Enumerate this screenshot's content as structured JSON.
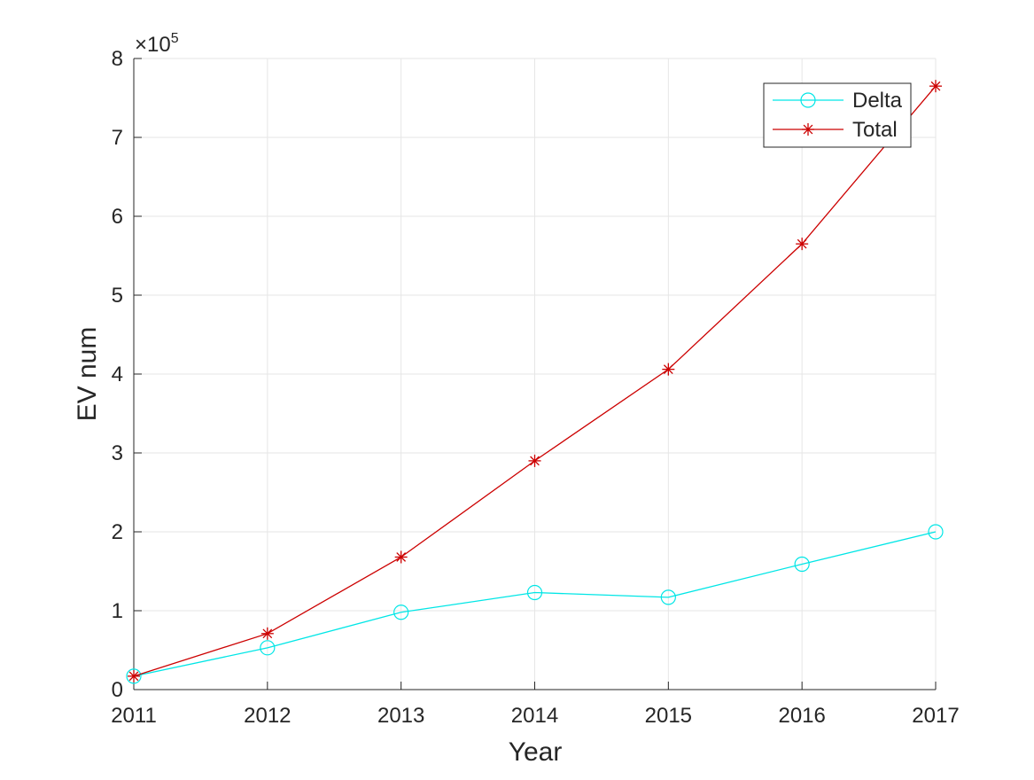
{
  "chart_data": {
    "type": "line",
    "xlabel": "Year",
    "ylabel": "EV num",
    "x": [
      2011,
      2012,
      2013,
      2014,
      2015,
      2016,
      2017
    ],
    "xlim": [
      2011,
      2017
    ],
    "ylim": [
      0,
      800000
    ],
    "y_scale_factor": "×10",
    "y_scale_exponent": "5",
    "x_ticks": [
      "2011",
      "2012",
      "2013",
      "2014",
      "2015",
      "2016",
      "2017"
    ],
    "y_ticks": [
      "0",
      "1",
      "2",
      "3",
      "4",
      "5",
      "6",
      "7",
      "8"
    ],
    "grid": true,
    "legend_position": "top-right",
    "series": [
      {
        "name": "Delta",
        "color": "#00e6e6",
        "marker": "circle",
        "values": [
          17000,
          53000,
          98000,
          123000,
          117000,
          159000,
          200000
        ]
      },
      {
        "name": "Total",
        "color": "#cc0000",
        "marker": "asterisk",
        "values": [
          17000,
          71000,
          168000,
          290000,
          406000,
          565000,
          765000
        ]
      }
    ]
  }
}
